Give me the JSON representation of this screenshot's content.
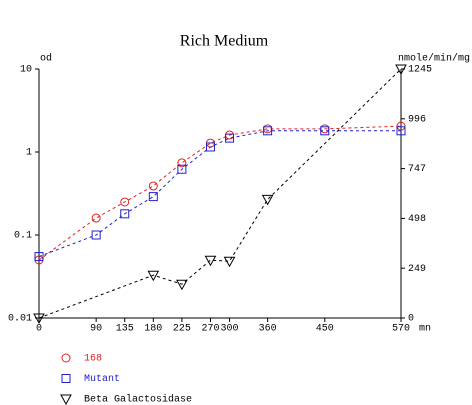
{
  "chart_data": {
    "type": "line",
    "title": "Rich Medium",
    "ylabel": "od",
    "y2label": "nmole/min/mg",
    "xlabel": "mn",
    "xlim": [
      0,
      570
    ],
    "xticks": [
      0,
      90,
      135,
      180,
      225,
      270,
      300,
      360,
      450,
      570
    ],
    "ylim": [
      0.01,
      10
    ],
    "yticks": [
      0.01,
      0.1,
      1,
      10
    ],
    "ylog": true,
    "y2lim": [
      0,
      1245
    ],
    "y2ticks": [
      0,
      249,
      498,
      747,
      996,
      1245
    ],
    "series": [
      {
        "name": "168",
        "color": "#e02020",
        "marker": "circle",
        "x": [
          0,
          90,
          135,
          180,
          225,
          270,
          300,
          360,
          450,
          570
        ],
        "values": [
          0.05,
          0.16,
          0.25,
          0.39,
          0.74,
          1.28,
          1.6,
          1.9,
          1.9,
          2.05
        ]
      },
      {
        "name": "Mutant",
        "color": "#2020d0",
        "marker": "square",
        "x": [
          0,
          90,
          135,
          180,
          225,
          270,
          300,
          360,
          450,
          570
        ],
        "values": [
          0.055,
          0.1,
          0.18,
          0.29,
          0.62,
          1.15,
          1.47,
          1.8,
          1.8,
          1.8
        ]
      },
      {
        "name": "Beta Galactosidase",
        "color": "#000000",
        "marker": "triangle-down",
        "axis": "y2",
        "x": [
          0,
          180,
          225,
          270,
          300,
          360,
          570
        ],
        "values": [
          0,
          214,
          169,
          289,
          284,
          593,
          1245
        ]
      }
    ]
  }
}
